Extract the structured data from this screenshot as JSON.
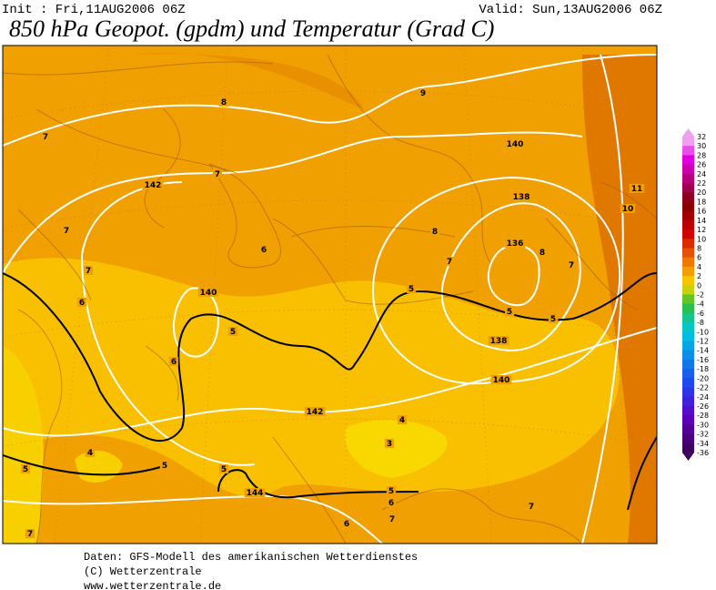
{
  "header": {
    "init": "Init : Fri,11AUG2006 06Z",
    "valid": "Valid: Sun,13AUG2006 06Z",
    "title": "850 hPa Geopot. (gpdm) und Temperatur (Grad C)"
  },
  "colorbar": {
    "labels": [
      "32",
      "30",
      "28",
      "26",
      "24",
      "22",
      "20",
      "18",
      "16",
      "14",
      "12",
      "10",
      "8",
      "6",
      "4",
      "2",
      "0",
      "-2",
      "-4",
      "-6",
      "-8",
      "-10",
      "-12",
      "-14",
      "-16",
      "-18",
      "-20",
      "-22",
      "-24",
      "-26",
      "-28",
      "-30",
      "-32",
      "-34",
      "-36"
    ]
  },
  "map": {
    "contour_labels": [
      "8",
      "9",
      "7",
      "7",
      "142",
      "140",
      "138",
      "11",
      "10",
      "7",
      "8",
      "6",
      "136",
      "8",
      "7",
      "7",
      "7",
      "6",
      "140",
      "5",
      "5",
      "5",
      "5",
      "138",
      "6",
      "140",
      "142",
      "4",
      "3",
      "4",
      "5",
      "5",
      "5",
      "5",
      "6",
      "144",
      "7",
      "7",
      "6",
      "7"
    ]
  },
  "footer": {
    "lines": [
      "Daten: GFS-Modell des amerikanischen Wetterdienstes",
      "(C) Wetterzentrale",
      "www.wetterzentrale.de"
    ]
  }
}
